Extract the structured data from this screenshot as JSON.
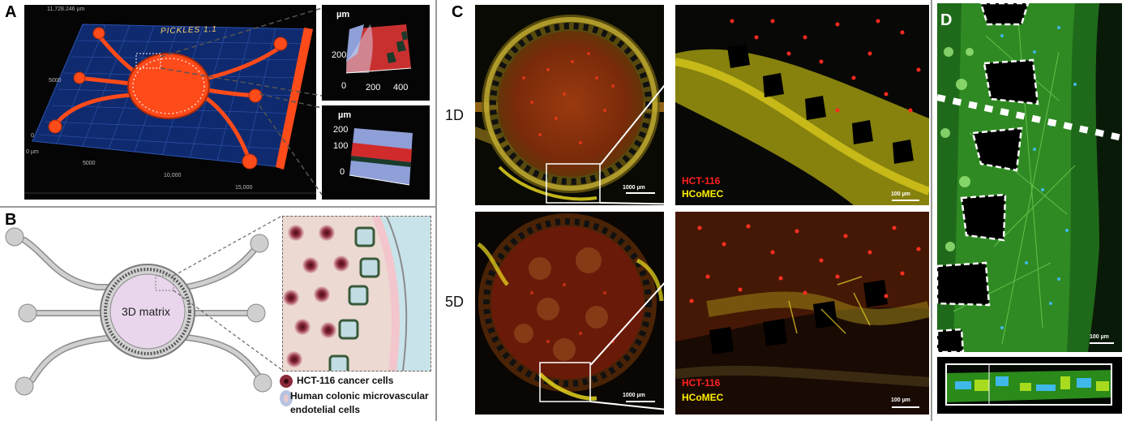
{
  "panels": {
    "a": {
      "label": "A",
      "title_3d": "PICKLES 1.1",
      "top_value": "11,728.246 µm",
      "axis_labels": [
        "5000",
        "0",
        "0 µm",
        "5000",
        "10,000",
        "15,000"
      ],
      "inset1": {
        "unit": "µm",
        "y_tick": "200",
        "x_ticks": [
          "0",
          "200",
          "400"
        ]
      },
      "inset2": {
        "unit": "µm",
        "y_ticks": [
          "200",
          "100",
          "0"
        ]
      }
    },
    "b": {
      "label": "B",
      "center_label": "3D matrix",
      "legend": [
        {
          "text": "HCT-116 cancer cells"
        },
        {
          "text": "Human colonic microvascular endotelial cells"
        }
      ]
    },
    "c": {
      "label": "C",
      "rows": [
        {
          "label": "1D",
          "scale_left": "1000 µm",
          "scale_right": "100 µm",
          "marker1": "HCT-116",
          "marker2": "HCoMEC"
        },
        {
          "label": "5D",
          "scale_left": "1000 µm",
          "scale_right": "100 µm",
          "marker1": "HCT-116",
          "marker2": "HCoMEC"
        }
      ]
    },
    "d": {
      "label": "D",
      "scale": "100 µm"
    }
  },
  "colors": {
    "hct116": "#ff2020",
    "hcomec": "#ffee00",
    "chip_orange": "#ff4a1a",
    "grid_blue": "#0f2a6e"
  }
}
